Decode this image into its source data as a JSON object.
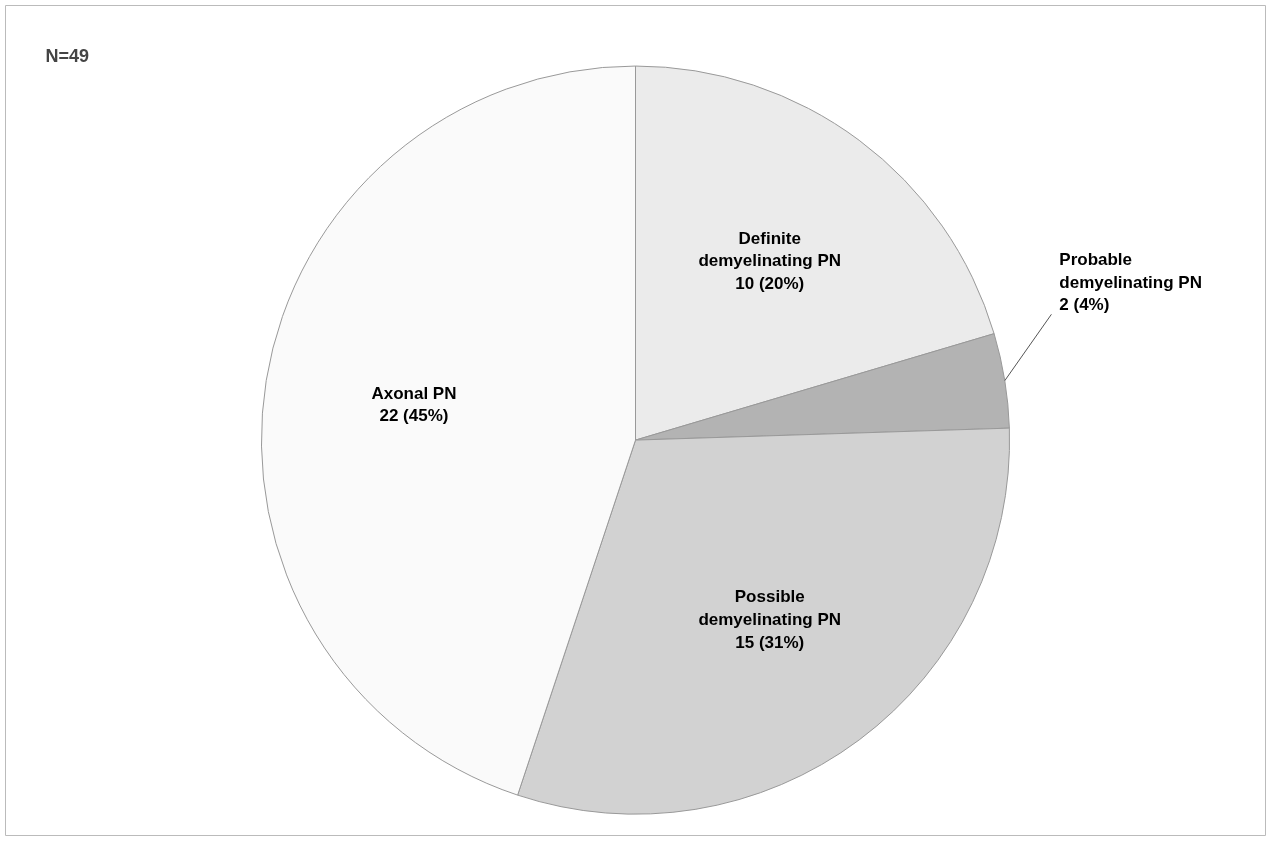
{
  "chart_data": {
    "type": "pie",
    "categories": [
      "Definite demyelinating PN",
      "Probable demyelinating PN",
      "Possible demyelinating PN",
      "Axonal PN"
    ],
    "values": [
      10,
      2,
      15,
      22
    ],
    "value_labels": [
      "10 (20%)",
      "2 (4%)",
      "15 (31%)",
      "22 (45%)"
    ],
    "colors": [
      "#ebebeb",
      "#b3b3b3",
      "#d2d2d2",
      "#fafafa"
    ],
    "annotations": [
      "N=49"
    ],
    "legend": false
  }
}
